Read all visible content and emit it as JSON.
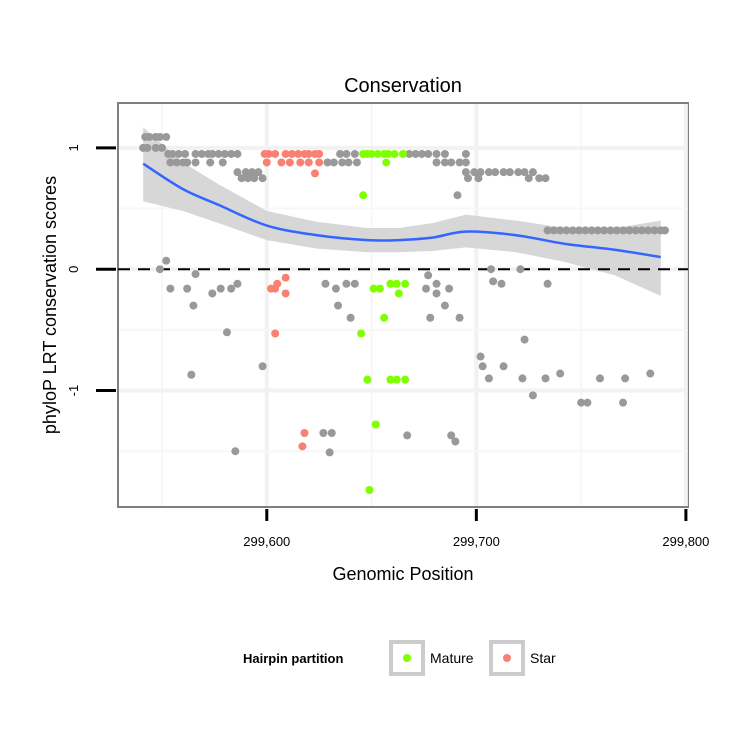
{
  "chart_data": {
    "type": "scatter",
    "title": "Conservation",
    "xlabel": "Genomic Position",
    "ylabel": "phyloP LRT conservation scores",
    "xlim": [
      299529,
      299801
    ],
    "ylim": [
      -1.96,
      1.37
    ],
    "x_ticks": [
      {
        "value": 299600,
        "label": "299,600"
      },
      {
        "value": 299700,
        "label": "299,700"
      },
      {
        "value": 299800,
        "label": "299,800"
      }
    ],
    "y_ticks": [
      {
        "value": 1,
        "label": "1"
      },
      {
        "value": 0,
        "label": "0"
      },
      {
        "value": -1,
        "label": "-1"
      }
    ],
    "reference_line": {
      "y": 0,
      "style": "dashed"
    },
    "grid": true,
    "colors": {
      "other": "#999999",
      "Mature": "#7fff00",
      "Star": "#fa8072",
      "fit": "#3366ff",
      "ribbon": "#d3d3d3"
    },
    "legend": {
      "title": "Hairpin partition",
      "position": "bottom",
      "entries": [
        "Mature",
        "Star"
      ]
    },
    "series": [
      {
        "name": "other",
        "points": [
          [
            299542,
            1.09
          ],
          [
            299544,
            1.09
          ],
          [
            299547,
            1.09
          ],
          [
            299549,
            1.09
          ],
          [
            299552,
            1.09
          ],
          [
            299541,
            1.0
          ],
          [
            299543,
            1.0
          ],
          [
            299547,
            1.0
          ],
          [
            299550,
            1.0
          ],
          [
            299553,
            0.95
          ],
          [
            299555,
            0.95
          ],
          [
            299558,
            0.95
          ],
          [
            299561,
            0.95
          ],
          [
            299566,
            0.95
          ],
          [
            299569,
            0.95
          ],
          [
            299572,
            0.95
          ],
          [
            299574,
            0.95
          ],
          [
            299577,
            0.95
          ],
          [
            299580,
            0.95
          ],
          [
            299583,
            0.95
          ],
          [
            299586,
            0.95
          ],
          [
            299635,
            0.95
          ],
          [
            299638,
            0.95
          ],
          [
            299642,
            0.95
          ],
          [
            299668,
            0.95
          ],
          [
            299671,
            0.95
          ],
          [
            299674,
            0.95
          ],
          [
            299677,
            0.95
          ],
          [
            299681,
            0.95
          ],
          [
            299685,
            0.95
          ],
          [
            299695,
            0.95
          ],
          [
            299554,
            0.88
          ],
          [
            299557,
            0.88
          ],
          [
            299560,
            0.88
          ],
          [
            299562,
            0.88
          ],
          [
            299566,
            0.88
          ],
          [
            299573,
            0.88
          ],
          [
            299579,
            0.88
          ],
          [
            299629,
            0.88
          ],
          [
            299632,
            0.88
          ],
          [
            299636,
            0.88
          ],
          [
            299639,
            0.88
          ],
          [
            299643,
            0.88
          ],
          [
            299681,
            0.88
          ],
          [
            299685,
            0.88
          ],
          [
            299688,
            0.88
          ],
          [
            299692,
            0.88
          ],
          [
            299695,
            0.88
          ],
          [
            299586,
            0.8
          ],
          [
            299590,
            0.8
          ],
          [
            299593,
            0.8
          ],
          [
            299596,
            0.8
          ],
          [
            299695,
            0.8
          ],
          [
            299699,
            0.8
          ],
          [
            299702,
            0.8
          ],
          [
            299706,
            0.8
          ],
          [
            299709,
            0.8
          ],
          [
            299713,
            0.8
          ],
          [
            299716,
            0.8
          ],
          [
            299720,
            0.8
          ],
          [
            299723,
            0.8
          ],
          [
            299727,
            0.8
          ],
          [
            299588,
            0.75
          ],
          [
            299591,
            0.75
          ],
          [
            299594,
            0.75
          ],
          [
            299598,
            0.75
          ],
          [
            299696,
            0.75
          ],
          [
            299701,
            0.75
          ],
          [
            299725,
            0.75
          ],
          [
            299730,
            0.75
          ],
          [
            299733,
            0.75
          ],
          [
            299691,
            0.61
          ],
          [
            299734,
            0.32
          ],
          [
            299737,
            0.32
          ],
          [
            299740,
            0.32
          ],
          [
            299743,
            0.32
          ],
          [
            299746,
            0.32
          ],
          [
            299749,
            0.32
          ],
          [
            299752,
            0.32
          ],
          [
            299755,
            0.32
          ],
          [
            299758,
            0.32
          ],
          [
            299761,
            0.32
          ],
          [
            299764,
            0.32
          ],
          [
            299767,
            0.32
          ],
          [
            299770,
            0.32
          ],
          [
            299773,
            0.32
          ],
          [
            299776,
            0.32
          ],
          [
            299779,
            0.32
          ],
          [
            299782,
            0.32
          ],
          [
            299785,
            0.32
          ],
          [
            299788,
            0.32
          ],
          [
            299790,
            0.32
          ],
          [
            299552,
            0.07
          ],
          [
            299549,
            0.0
          ],
          [
            299566,
            -0.04
          ],
          [
            299554,
            -0.16
          ],
          [
            299562,
            -0.16
          ],
          [
            299565,
            -0.3
          ],
          [
            299574,
            -0.2
          ],
          [
            299578,
            -0.16
          ],
          [
            299583,
            -0.16
          ],
          [
            299586,
            -0.12
          ],
          [
            299628,
            -0.12
          ],
          [
            299633,
            -0.16
          ],
          [
            299638,
            -0.12
          ],
          [
            299642,
            -0.12
          ],
          [
            299634,
            -0.3
          ],
          [
            299640,
            -0.4
          ],
          [
            299678,
            -0.4
          ],
          [
            299685,
            -0.3
          ],
          [
            299692,
            -0.4
          ],
          [
            299707,
            0.0
          ],
          [
            299721,
            0.0
          ],
          [
            299677,
            -0.05
          ],
          [
            299681,
            -0.12
          ],
          [
            299676,
            -0.16
          ],
          [
            299681,
            -0.2
          ],
          [
            299687,
            -0.16
          ],
          [
            299708,
            -0.1
          ],
          [
            299712,
            -0.12
          ],
          [
            299734,
            -0.12
          ],
          [
            299581,
            -0.52
          ],
          [
            299723,
            -0.58
          ],
          [
            299598,
            -0.8
          ],
          [
            299564,
            -0.87
          ],
          [
            299702,
            -0.72
          ],
          [
            299703,
            -0.8
          ],
          [
            299713,
            -0.8
          ],
          [
            299706,
            -0.9
          ],
          [
            299722,
            -0.9
          ],
          [
            299733,
            -0.9
          ],
          [
            299740,
            -0.86
          ],
          [
            299727,
            -1.04
          ],
          [
            299750,
            -1.1
          ],
          [
            299753,
            -1.1
          ],
          [
            299770,
            -1.1
          ],
          [
            299759,
            -0.9
          ],
          [
            299771,
            -0.9
          ],
          [
            299783,
            -0.86
          ],
          [
            299627,
            -1.35
          ],
          [
            299631,
            -1.35
          ],
          [
            299667,
            -1.37
          ],
          [
            299688,
            -1.37
          ],
          [
            299690,
            -1.42
          ],
          [
            299585,
            -1.5
          ],
          [
            299630,
            -1.51
          ]
        ]
      },
      {
        "name": "Star",
        "points": [
          [
            299599,
            0.95
          ],
          [
            299601,
            0.95
          ],
          [
            299604,
            0.95
          ],
          [
            299609,
            0.95
          ],
          [
            299612,
            0.95
          ],
          [
            299615,
            0.95
          ],
          [
            299618,
            0.95
          ],
          [
            299620,
            0.95
          ],
          [
            299623,
            0.95
          ],
          [
            299625,
            0.95
          ],
          [
            299600,
            0.88
          ],
          [
            299607,
            0.88
          ],
          [
            299611,
            0.88
          ],
          [
            299616,
            0.88
          ],
          [
            299620,
            0.88
          ],
          [
            299625,
            0.88
          ],
          [
            299623,
            0.79
          ],
          [
            299609,
            -0.07
          ],
          [
            299605,
            -0.12
          ],
          [
            299602,
            -0.16
          ],
          [
            299609,
            -0.2
          ],
          [
            299604,
            -0.16
          ],
          [
            299604,
            -0.53
          ],
          [
            299618,
            -1.35
          ],
          [
            299617,
            -1.46
          ]
        ]
      },
      {
        "name": "Mature",
        "points": [
          [
            299646,
            0.95
          ],
          [
            299648,
            0.95
          ],
          [
            299650,
            0.95
          ],
          [
            299653,
            0.95
          ],
          [
            299656,
            0.95
          ],
          [
            299658,
            0.95
          ],
          [
            299661,
            0.95
          ],
          [
            299665,
            0.95
          ],
          [
            299657,
            0.88
          ],
          [
            299646,
            0.61
          ],
          [
            299651,
            -0.16
          ],
          [
            299654,
            -0.16
          ],
          [
            299659,
            -0.12
          ],
          [
            299662,
            -0.12
          ],
          [
            299666,
            -0.12
          ],
          [
            299663,
            -0.2
          ],
          [
            299656,
            -0.4
          ],
          [
            299645,
            -0.53
          ],
          [
            299648,
            -0.91
          ],
          [
            299659,
            -0.91
          ],
          [
            299662,
            -0.91
          ],
          [
            299666,
            -0.91
          ],
          [
            299652,
            -1.28
          ],
          [
            299649,
            -1.82
          ]
        ]
      }
    ],
    "smooth": {
      "x": [
        299541,
        299560,
        299577,
        299600,
        299624,
        299648,
        299663,
        299679,
        299695,
        299719,
        299742,
        299766,
        299788
      ],
      "fit": [
        0.87,
        0.66,
        0.53,
        0.36,
        0.28,
        0.24,
        0.24,
        0.26,
        0.31,
        0.28,
        0.21,
        0.16,
        0.1
      ],
      "upper": [
        1.17,
        0.88,
        0.7,
        0.48,
        0.39,
        0.34,
        0.34,
        0.38,
        0.45,
        0.4,
        0.34,
        0.34,
        0.4
      ],
      "lower": [
        0.56,
        0.48,
        0.38,
        0.24,
        0.17,
        0.14,
        0.14,
        0.15,
        0.18,
        0.14,
        0.06,
        -0.05,
        -0.22
      ]
    }
  }
}
